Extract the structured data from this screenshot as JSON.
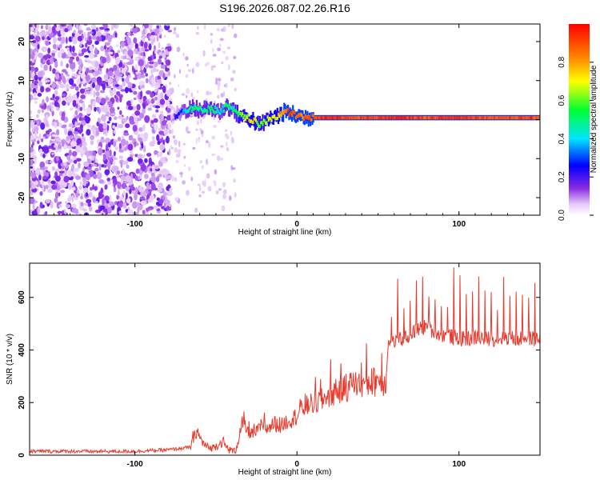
{
  "title": "S196.2026.087.02.26.R16",
  "chart_data": [
    {
      "type": "heatmap",
      "xlabel": "Height of straight line (km)",
      "ylabel": "Frequency (Hz)",
      "xlim": [
        -165,
        150
      ],
      "ylim": [
        -24.5,
        24.5
      ],
      "x_ticks": [
        -100,
        0,
        100
      ],
      "y_ticks": [
        -20,
        -10,
        0,
        10,
        20
      ],
      "colorbar": {
        "label": "Normalized spectral amplitude",
        "range": [
          0,
          1
        ],
        "ticks": [
          0.0,
          0.2,
          0.4,
          0.6,
          0.8
        ],
        "colormap": "rainbow (white-violet-blue-cyan-green-yellow-red)"
      },
      "noise_region_x": [
        -165,
        -78
      ],
      "signal_trace": {
        "x": [
          -78,
          -72,
          -66,
          -60,
          -54,
          -48,
          -44,
          -40,
          -36,
          -32,
          -28,
          -24,
          -20,
          -16,
          -12,
          -8,
          -4,
          0,
          5,
          10,
          20,
          40,
          60,
          80,
          100,
          120,
          150
        ],
        "freq_hz": [
          0.5,
          2.0,
          3.0,
          2.5,
          3.0,
          2.0,
          3.5,
          2.5,
          1.0,
          0.5,
          0.0,
          -1.5,
          -0.5,
          0.5,
          1.0,
          2.0,
          1.5,
          1.0,
          0.5,
          0.5,
          0.5,
          0.5,
          0.5,
          0.5,
          0.5,
          0.5,
          0.5
        ],
        "amplitude": [
          0.1,
          0.3,
          0.5,
          0.45,
          0.5,
          0.4,
          0.5,
          0.45,
          0.6,
          0.65,
          0.75,
          0.6,
          0.65,
          0.7,
          0.75,
          0.85,
          0.9,
          0.85,
          0.85,
          0.9,
          0.95,
          0.9,
          0.95,
          0.9,
          0.95,
          0.9,
          0.9
        ]
      }
    },
    {
      "type": "line",
      "xlabel": "Height of straight line (km)",
      "ylabel": "SNR (10 * v/v)",
      "xlim": [
        -165,
        150
      ],
      "ylim": [
        0,
        730
      ],
      "x_ticks": [
        -100,
        0,
        100
      ],
      "y_ticks": [
        0,
        200,
        400,
        600
      ],
      "color": "#e8392c",
      "series": [
        {
          "x": [
            -165,
            -140,
            -120,
            -100,
            -80,
            -66,
            -62,
            -58,
            -54,
            -50,
            -46,
            -42,
            -38,
            -36,
            -34,
            -30,
            -26,
            -22,
            -18,
            -14,
            -10,
            -6,
            -2,
            0,
            4,
            8,
            12,
            16,
            20,
            24,
            28,
            32,
            36,
            40,
            44,
            48,
            52,
            55,
            56,
            60,
            64,
            68,
            72,
            76,
            80,
            84,
            88,
            92,
            96,
            100,
            104,
            108,
            112,
            116,
            120,
            124,
            128,
            132,
            136,
            140,
            144,
            148,
            150
          ],
          "y": [
            15,
            15,
            14,
            15,
            20,
            30,
            90,
            45,
            25,
            35,
            50,
            20,
            15,
            60,
            120,
            90,
            80,
            110,
            100,
            120,
            110,
            130,
            140,
            150,
            180,
            190,
            200,
            210,
            230,
            240,
            250,
            260,
            270,
            275,
            275,
            280,
            285,
            280,
            420,
            430,
            440,
            450,
            470,
            480,
            490,
            470,
            460,
            455,
            450,
            445,
            440,
            445,
            450,
            440,
            445,
            440,
            450,
            445,
            440,
            450,
            445,
            440,
            445
          ]
        }
      ]
    }
  ]
}
